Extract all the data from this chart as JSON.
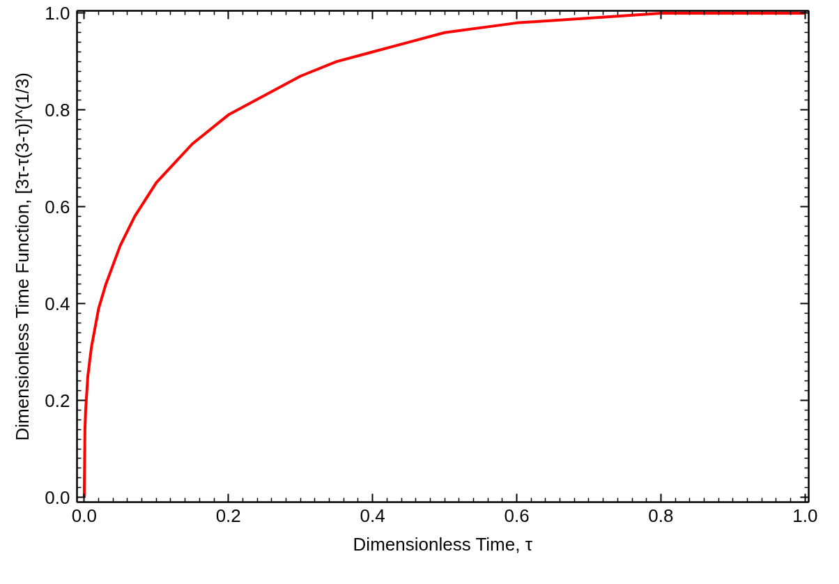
{
  "chart_data": {
    "type": "line",
    "xlabel": "Dimensionless Time, τ",
    "ylabel": "Dimensionless Time Function, [3τ-τ(3-τ)]^(1/3)",
    "x": [
      0,
      0.001,
      0.002,
      0.005,
      0.01,
      0.02,
      0.03,
      0.05,
      0.07,
      0.1,
      0.15,
      0.2,
      0.25,
      0.3,
      0.35,
      0.4,
      0.45,
      0.5,
      0.6,
      0.7,
      0.8,
      0.9,
      1.0
    ],
    "series": [
      {
        "color": "#ff0000",
        "values": [
          0,
          0.14,
          0.18,
          0.25,
          0.31,
          0.39,
          0.44,
          0.52,
          0.58,
          0.65,
          0.73,
          0.79,
          0.83,
          0.87,
          0.9,
          0.92,
          0.94,
          0.96,
          0.98,
          0.99,
          1.0,
          1.0,
          1.0
        ]
      }
    ],
    "xlim": [
      -0.01,
      1.005
    ],
    "ylim": [
      -0.01,
      1.005
    ],
    "xticks": [
      {
        "value": 0,
        "label": "0.0"
      },
      0.2,
      0.4,
      0.6,
      0.8,
      {
        "value": 1,
        "label": "1.0"
      }
    ],
    "yticks": [
      {
        "value": 0,
        "label": "0.0"
      },
      0.2,
      0.4,
      0.6,
      0.8,
      {
        "value": 1,
        "label": "1.0"
      }
    ],
    "grid": false,
    "marker": "none",
    "line_style": "solid"
  }
}
